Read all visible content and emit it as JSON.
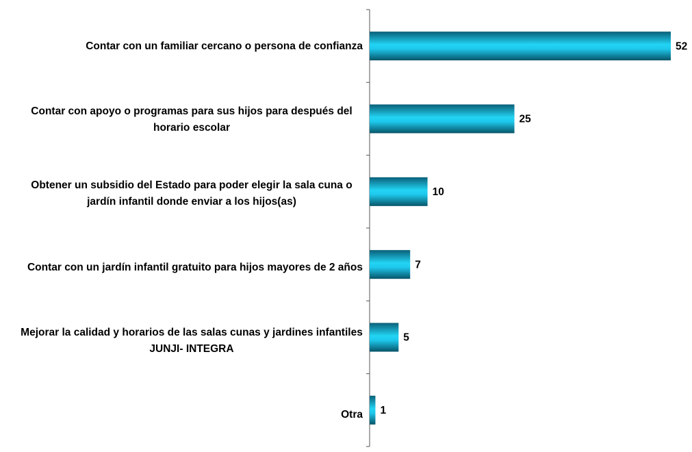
{
  "chart_data": {
    "type": "bar",
    "orientation": "horizontal",
    "categories": [
      "Contar con un familiar cercano o persona de confianza",
      "Contar con apoyo o programas para sus hijos para después del horario escolar",
      "Obtener un subsidio del Estado para poder elegir la sala cuna o jardín infantil donde enviar a los hijos(as)",
      "Contar con un jardín infantil gratuito para hijos mayores de 2 años",
      "Mejorar la calidad y horarios de las salas cunas y jardines infantiles JUNJI- INTEGRA",
      "Otra"
    ],
    "values": [
      52,
      25,
      10,
      7,
      5,
      1
    ],
    "color": "#1ec8ec"
  }
}
